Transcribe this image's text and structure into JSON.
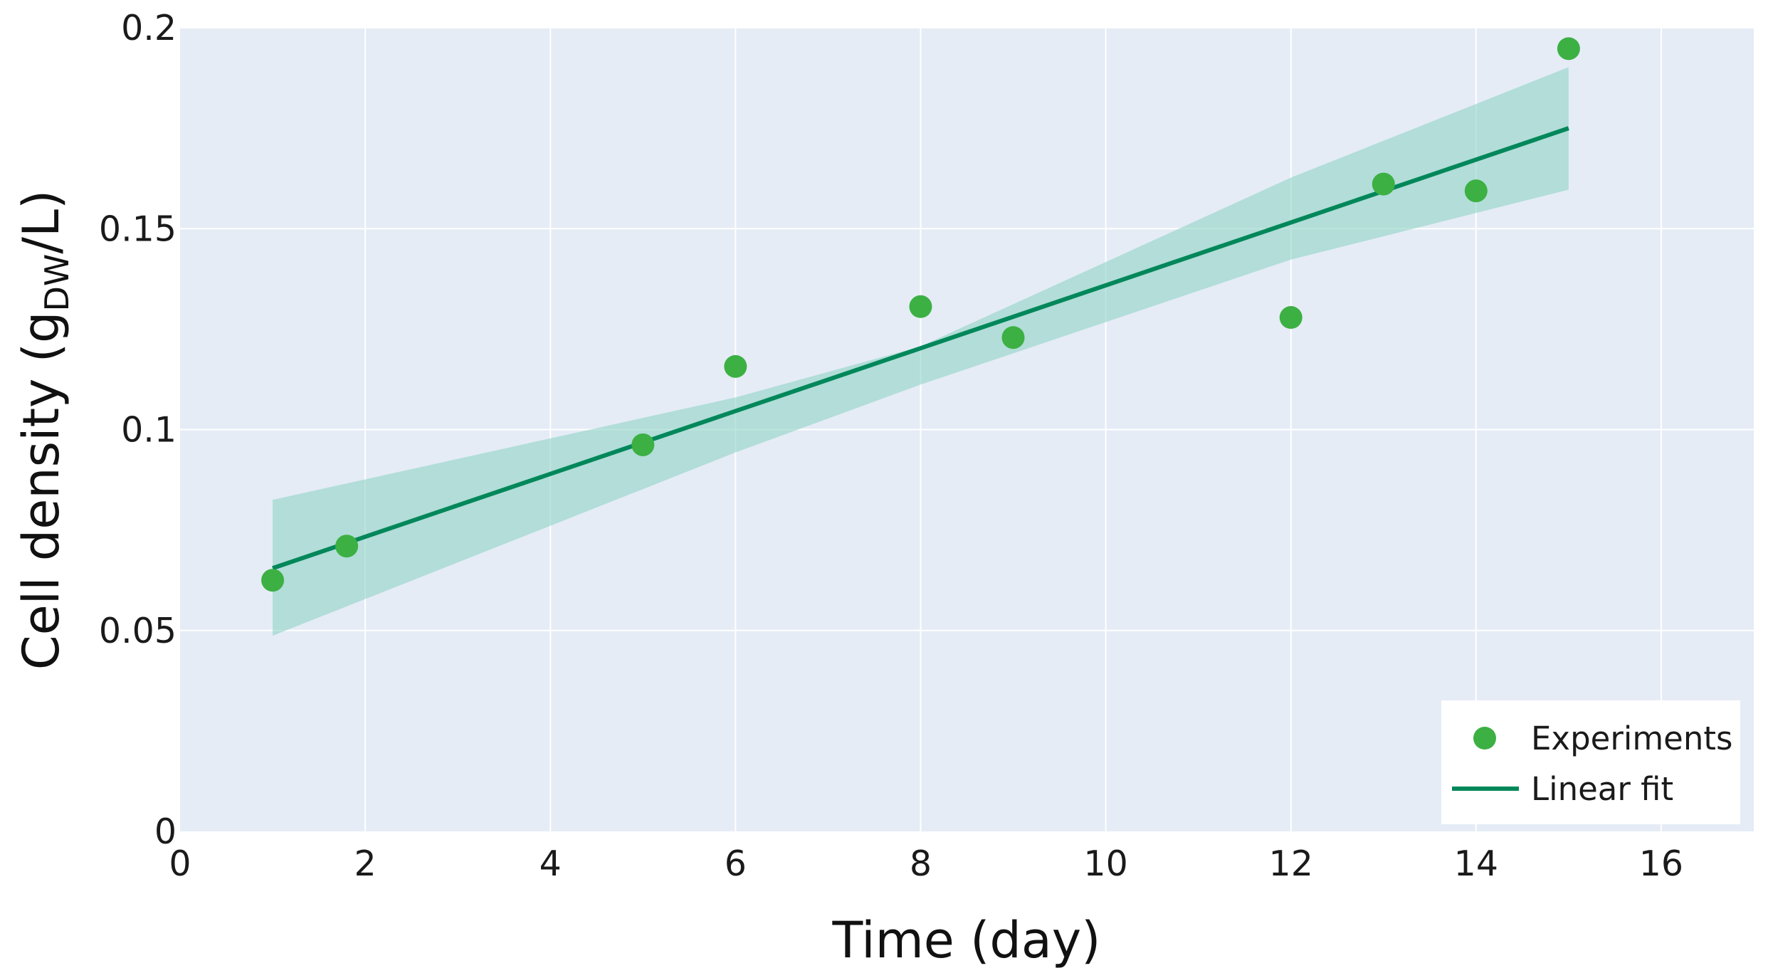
{
  "chart_data": {
    "type": "scatter",
    "xlabel": "Time (day)",
    "ylabel": {
      "prefix": "Cell density (g",
      "subscript": "DW",
      "suffix": "/L)"
    },
    "xlim": [
      0,
      17
    ],
    "ylim": [
      0,
      0.2
    ],
    "x_ticks": [
      0,
      2,
      4,
      6,
      8,
      10,
      12,
      14,
      16
    ],
    "x_tick_labels": [
      "0",
      "2",
      "4",
      "6",
      "8",
      "10",
      "12",
      "14",
      "16"
    ],
    "y_ticks": [
      0,
      0.05,
      0.1,
      0.15,
      0.2
    ],
    "y_tick_labels": [
      "0",
      "0.05",
      "0.1",
      "0.15",
      "0.2"
    ],
    "grid": true,
    "legend_position": "bottom-right",
    "series": [
      {
        "name": "Experiments",
        "kind": "scatter",
        "color": "#3cb043",
        "x": [
          1,
          1.8,
          5,
          6,
          8,
          9,
          12,
          13,
          14,
          15
        ],
        "y": [
          0.0625,
          0.071,
          0.0962,
          0.1157,
          0.1306,
          0.1229,
          0.1279,
          0.1611,
          0.1594,
          0.1948
        ]
      },
      {
        "name": "Linear fit",
        "kind": "line",
        "color": "#00875a",
        "x": [
          1,
          15
        ],
        "y": [
          0.0655,
          0.175
        ]
      }
    ],
    "confidence_band": {
      "color": "#8fd3c4",
      "x": [
        1,
        6,
        8,
        12,
        15
      ],
      "upper": [
        0.0825,
        0.108,
        0.1207,
        0.1627,
        0.1902
      ],
      "lower": [
        0.0487,
        0.0943,
        0.1112,
        0.1423,
        0.1597
      ]
    }
  },
  "colors": {
    "plot_background": "#e5ecf6",
    "grid": "#ffffff",
    "legend_background": "#ffffff"
  }
}
